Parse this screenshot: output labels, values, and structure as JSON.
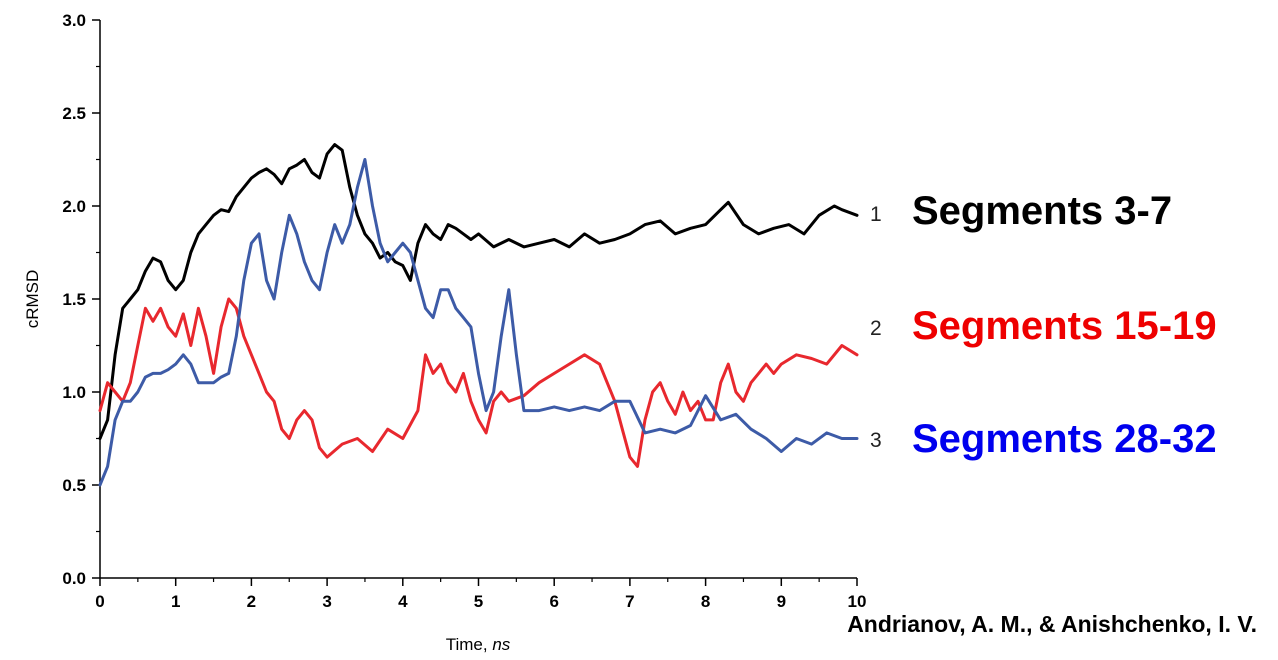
{
  "chart_data": {
    "type": "line",
    "xlabel": "Time, ",
    "xlabel_unit": "ns",
    "ylabel": "cRMSD",
    "xlim": [
      0,
      10
    ],
    "ylim": [
      0,
      3
    ],
    "xticks": [
      "0",
      "1",
      "2",
      "3",
      "4",
      "5",
      "6",
      "7",
      "8",
      "9",
      "10"
    ],
    "yticks": [
      "0.0",
      "0.5",
      "1.0",
      "1.5",
      "2.0",
      "2.5",
      "3.0"
    ],
    "grid": false,
    "series": [
      {
        "end_label": "1",
        "legend": "Segments 3-7",
        "color": "#000000",
        "x": [
          0,
          0.1,
          0.2,
          0.3,
          0.4,
          0.5,
          0.6,
          0.7,
          0.8,
          0.9,
          1.0,
          1.1,
          1.2,
          1.3,
          1.4,
          1.5,
          1.6,
          1.7,
          1.8,
          1.9,
          2.0,
          2.1,
          2.2,
          2.3,
          2.4,
          2.5,
          2.6,
          2.7,
          2.8,
          2.9,
          3.0,
          3.1,
          3.2,
          3.3,
          3.4,
          3.5,
          3.6,
          3.7,
          3.8,
          3.9,
          4.0,
          4.1,
          4.2,
          4.3,
          4.4,
          4.5,
          4.6,
          4.7,
          4.8,
          4.9,
          5.0,
          5.2,
          5.4,
          5.6,
          5.8,
          6.0,
          6.2,
          6.4,
          6.6,
          6.8,
          7.0,
          7.2,
          7.4,
          7.6,
          7.8,
          8.0,
          8.2,
          8.3,
          8.5,
          8.7,
          8.9,
          9.1,
          9.3,
          9.5,
          9.7,
          9.8,
          10.0
        ],
        "y": [
          0.75,
          0.85,
          1.2,
          1.45,
          1.5,
          1.55,
          1.65,
          1.72,
          1.7,
          1.6,
          1.55,
          1.6,
          1.75,
          1.85,
          1.9,
          1.95,
          1.98,
          1.97,
          2.05,
          2.1,
          2.15,
          2.18,
          2.2,
          2.17,
          2.12,
          2.2,
          2.22,
          2.25,
          2.18,
          2.15,
          2.28,
          2.33,
          2.3,
          2.1,
          1.95,
          1.85,
          1.8,
          1.72,
          1.75,
          1.7,
          1.68,
          1.6,
          1.8,
          1.9,
          1.85,
          1.82,
          1.9,
          1.88,
          1.85,
          1.82,
          1.85,
          1.78,
          1.82,
          1.78,
          1.8,
          1.82,
          1.78,
          1.85,
          1.8,
          1.82,
          1.85,
          1.9,
          1.92,
          1.85,
          1.88,
          1.9,
          1.98,
          2.02,
          1.9,
          1.85,
          1.88,
          1.9,
          1.85,
          1.95,
          2.0,
          1.98,
          1.95
        ]
      },
      {
        "end_label": "2",
        "legend": "Segments 15-19",
        "color": "#e8282e",
        "x": [
          0,
          0.1,
          0.2,
          0.3,
          0.4,
          0.5,
          0.6,
          0.7,
          0.8,
          0.9,
          1.0,
          1.1,
          1.2,
          1.3,
          1.4,
          1.5,
          1.6,
          1.7,
          1.8,
          1.9,
          2.0,
          2.1,
          2.2,
          2.3,
          2.4,
          2.5,
          2.6,
          2.7,
          2.8,
          2.9,
          3.0,
          3.2,
          3.4,
          3.6,
          3.8,
          4.0,
          4.2,
          4.3,
          4.4,
          4.5,
          4.6,
          4.7,
          4.8,
          4.9,
          5.0,
          5.1,
          5.2,
          5.3,
          5.4,
          5.6,
          5.8,
          6.0,
          6.2,
          6.4,
          6.6,
          6.7,
          6.8,
          6.9,
          7.0,
          7.1,
          7.2,
          7.3,
          7.4,
          7.5,
          7.6,
          7.7,
          7.8,
          7.9,
          8.0,
          8.1,
          8.2,
          8.3,
          8.4,
          8.5,
          8.6,
          8.7,
          8.8,
          8.9,
          9.0,
          9.2,
          9.4,
          9.6,
          9.8,
          10.0
        ],
        "y": [
          0.9,
          1.05,
          1.0,
          0.95,
          1.05,
          1.25,
          1.45,
          1.38,
          1.45,
          1.35,
          1.3,
          1.42,
          1.25,
          1.45,
          1.3,
          1.1,
          1.35,
          1.5,
          1.45,
          1.3,
          1.2,
          1.1,
          1.0,
          0.95,
          0.8,
          0.75,
          0.85,
          0.9,
          0.85,
          0.7,
          0.65,
          0.72,
          0.75,
          0.68,
          0.8,
          0.75,
          0.9,
          1.2,
          1.1,
          1.15,
          1.05,
          1.0,
          1.1,
          0.95,
          0.85,
          0.78,
          0.95,
          1.0,
          0.95,
          0.98,
          1.05,
          1.1,
          1.15,
          1.2,
          1.15,
          1.05,
          0.95,
          0.8,
          0.65,
          0.6,
          0.85,
          1.0,
          1.05,
          0.95,
          0.88,
          1.0,
          0.9,
          0.95,
          0.85,
          0.85,
          1.05,
          1.15,
          1.0,
          0.95,
          1.05,
          1.1,
          1.15,
          1.1,
          1.15,
          1.2,
          1.18,
          1.15,
          1.25,
          1.2
        ]
      },
      {
        "end_label": "3",
        "legend": "Segments 28-32",
        "color": "#3d5ba7",
        "x": [
          0,
          0.1,
          0.2,
          0.3,
          0.4,
          0.5,
          0.6,
          0.7,
          0.8,
          0.9,
          1.0,
          1.1,
          1.2,
          1.3,
          1.4,
          1.5,
          1.6,
          1.7,
          1.8,
          1.9,
          2.0,
          2.1,
          2.2,
          2.3,
          2.4,
          2.5,
          2.6,
          2.7,
          2.8,
          2.9,
          3.0,
          3.1,
          3.2,
          3.3,
          3.4,
          3.5,
          3.6,
          3.7,
          3.8,
          3.9,
          4.0,
          4.1,
          4.2,
          4.3,
          4.4,
          4.5,
          4.6,
          4.7,
          4.8,
          4.9,
          5.0,
          5.1,
          5.2,
          5.3,
          5.4,
          5.5,
          5.6,
          5.8,
          6.0,
          6.2,
          6.4,
          6.6,
          6.8,
          7.0,
          7.2,
          7.4,
          7.6,
          7.8,
          8.0,
          8.2,
          8.4,
          8.6,
          8.8,
          9.0,
          9.2,
          9.4,
          9.6,
          9.8,
          10.0
        ],
        "y": [
          0.5,
          0.6,
          0.85,
          0.95,
          0.95,
          1.0,
          1.08,
          1.1,
          1.1,
          1.12,
          1.15,
          1.2,
          1.15,
          1.05,
          1.05,
          1.05,
          1.08,
          1.1,
          1.3,
          1.6,
          1.8,
          1.85,
          1.6,
          1.5,
          1.75,
          1.95,
          1.85,
          1.7,
          1.6,
          1.55,
          1.75,
          1.9,
          1.8,
          1.9,
          2.1,
          2.25,
          2.0,
          1.8,
          1.7,
          1.75,
          1.8,
          1.75,
          1.6,
          1.45,
          1.4,
          1.55,
          1.55,
          1.45,
          1.4,
          1.35,
          1.1,
          0.9,
          1.0,
          1.3,
          1.55,
          1.2,
          0.9,
          0.9,
          0.92,
          0.9,
          0.92,
          0.9,
          0.95,
          0.95,
          0.78,
          0.8,
          0.78,
          0.82,
          0.98,
          0.85,
          0.88,
          0.8,
          0.75,
          0.68,
          0.75,
          0.72,
          0.78,
          0.75,
          0.75
        ]
      }
    ],
    "citation": "Andrianov, A. M., & Anishchenko, I. V."
  }
}
